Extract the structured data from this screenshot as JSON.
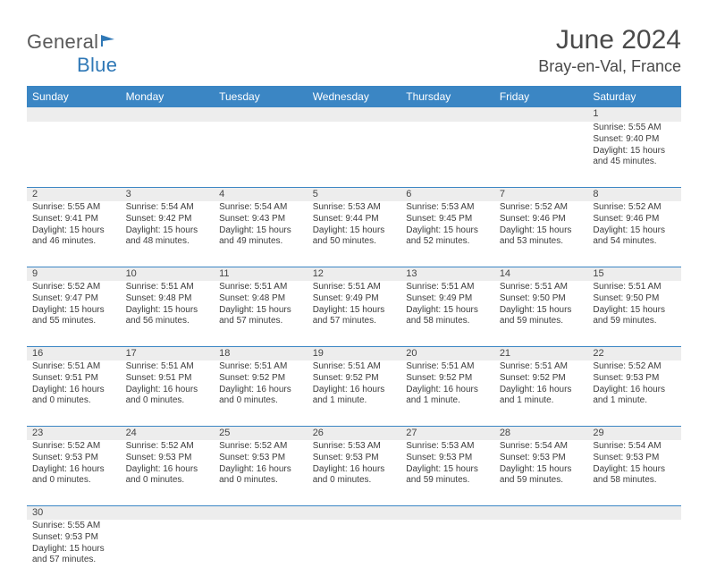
{
  "brand": {
    "part1": "General",
    "part2": "Blue"
  },
  "title": "June 2024",
  "location": "Bray-en-Val, France",
  "header_bg": "#3b86c4",
  "daynum_bg": "#ededed",
  "columns": [
    "Sunday",
    "Monday",
    "Tuesday",
    "Wednesday",
    "Thursday",
    "Friday",
    "Saturday"
  ],
  "column_count": 7,
  "font": {
    "title_size": 30,
    "location_size": 18,
    "header_size": 12,
    "body_size": 10
  },
  "weeks": [
    [
      null,
      null,
      null,
      null,
      null,
      null,
      {
        "n": 1,
        "sr": "5:55 AM",
        "ss": "9:40 PM",
        "dl": "15 hours and 45 minutes."
      }
    ],
    [
      {
        "n": 2,
        "sr": "5:55 AM",
        "ss": "9:41 PM",
        "dl": "15 hours and 46 minutes."
      },
      {
        "n": 3,
        "sr": "5:54 AM",
        "ss": "9:42 PM",
        "dl": "15 hours and 48 minutes."
      },
      {
        "n": 4,
        "sr": "5:54 AM",
        "ss": "9:43 PM",
        "dl": "15 hours and 49 minutes."
      },
      {
        "n": 5,
        "sr": "5:53 AM",
        "ss": "9:44 PM",
        "dl": "15 hours and 50 minutes."
      },
      {
        "n": 6,
        "sr": "5:53 AM",
        "ss": "9:45 PM",
        "dl": "15 hours and 52 minutes."
      },
      {
        "n": 7,
        "sr": "5:52 AM",
        "ss": "9:46 PM",
        "dl": "15 hours and 53 minutes."
      },
      {
        "n": 8,
        "sr": "5:52 AM",
        "ss": "9:46 PM",
        "dl": "15 hours and 54 minutes."
      }
    ],
    [
      {
        "n": 9,
        "sr": "5:52 AM",
        "ss": "9:47 PM",
        "dl": "15 hours and 55 minutes."
      },
      {
        "n": 10,
        "sr": "5:51 AM",
        "ss": "9:48 PM",
        "dl": "15 hours and 56 minutes."
      },
      {
        "n": 11,
        "sr": "5:51 AM",
        "ss": "9:48 PM",
        "dl": "15 hours and 57 minutes."
      },
      {
        "n": 12,
        "sr": "5:51 AM",
        "ss": "9:49 PM",
        "dl": "15 hours and 57 minutes."
      },
      {
        "n": 13,
        "sr": "5:51 AM",
        "ss": "9:49 PM",
        "dl": "15 hours and 58 minutes."
      },
      {
        "n": 14,
        "sr": "5:51 AM",
        "ss": "9:50 PM",
        "dl": "15 hours and 59 minutes."
      },
      {
        "n": 15,
        "sr": "5:51 AM",
        "ss": "9:50 PM",
        "dl": "15 hours and 59 minutes."
      }
    ],
    [
      {
        "n": 16,
        "sr": "5:51 AM",
        "ss": "9:51 PM",
        "dl": "16 hours and 0 minutes."
      },
      {
        "n": 17,
        "sr": "5:51 AM",
        "ss": "9:51 PM",
        "dl": "16 hours and 0 minutes."
      },
      {
        "n": 18,
        "sr": "5:51 AM",
        "ss": "9:52 PM",
        "dl": "16 hours and 0 minutes."
      },
      {
        "n": 19,
        "sr": "5:51 AM",
        "ss": "9:52 PM",
        "dl": "16 hours and 1 minute."
      },
      {
        "n": 20,
        "sr": "5:51 AM",
        "ss": "9:52 PM",
        "dl": "16 hours and 1 minute."
      },
      {
        "n": 21,
        "sr": "5:51 AM",
        "ss": "9:52 PM",
        "dl": "16 hours and 1 minute."
      },
      {
        "n": 22,
        "sr": "5:52 AM",
        "ss": "9:53 PM",
        "dl": "16 hours and 1 minute."
      }
    ],
    [
      {
        "n": 23,
        "sr": "5:52 AM",
        "ss": "9:53 PM",
        "dl": "16 hours and 0 minutes."
      },
      {
        "n": 24,
        "sr": "5:52 AM",
        "ss": "9:53 PM",
        "dl": "16 hours and 0 minutes."
      },
      {
        "n": 25,
        "sr": "5:52 AM",
        "ss": "9:53 PM",
        "dl": "16 hours and 0 minutes."
      },
      {
        "n": 26,
        "sr": "5:53 AM",
        "ss": "9:53 PM",
        "dl": "16 hours and 0 minutes."
      },
      {
        "n": 27,
        "sr": "5:53 AM",
        "ss": "9:53 PM",
        "dl": "15 hours and 59 minutes."
      },
      {
        "n": 28,
        "sr": "5:54 AM",
        "ss": "9:53 PM",
        "dl": "15 hours and 59 minutes."
      },
      {
        "n": 29,
        "sr": "5:54 AM",
        "ss": "9:53 PM",
        "dl": "15 hours and 58 minutes."
      }
    ],
    [
      {
        "n": 30,
        "sr": "5:55 AM",
        "ss": "9:53 PM",
        "dl": "15 hours and 57 minutes."
      },
      null,
      null,
      null,
      null,
      null,
      null
    ]
  ],
  "labels": {
    "sunrise": "Sunrise:",
    "sunset": "Sunset:",
    "daylight": "Daylight:"
  }
}
